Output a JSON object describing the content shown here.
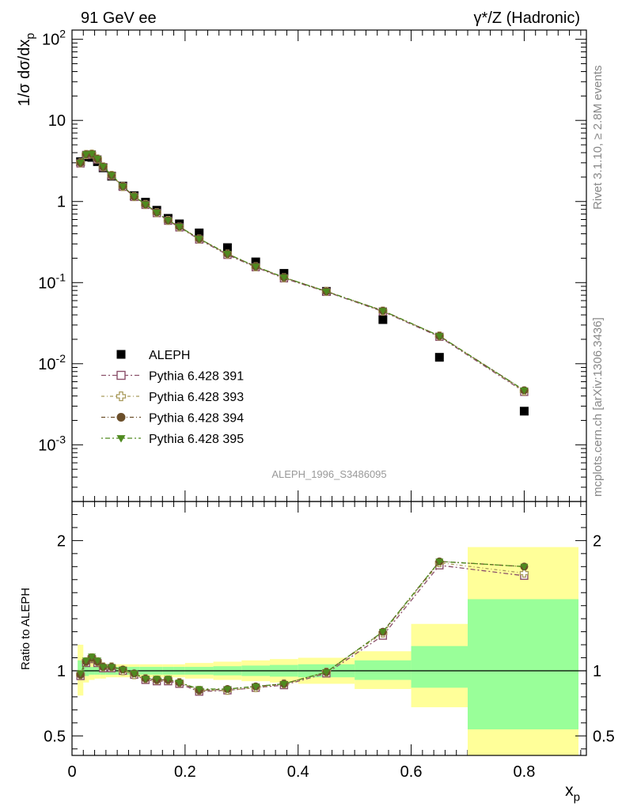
{
  "header": {
    "left": "91 GeV ee",
    "right": "γ*/Z (Hadronic)"
  },
  "side_labels": {
    "rivet": "Rivet 3.1.10, ≥ 2.8M events",
    "mcplots": "mcplots.cern.ch [arXiv:1306.3436]"
  },
  "analysis_id": "ALEPH_1996_S3486095",
  "colors": {
    "data": "#000000",
    "p391": "#8a4f6a",
    "p393": "#a89a5a",
    "p394": "#6b4f2a",
    "p395": "#4f8a1f",
    "band_inner": "#99ff99",
    "band_outer": "#ffff99"
  },
  "chart_data": [
    {
      "type": "scatter",
      "panel": "main",
      "xlabel": "",
      "ylabel": "1/σ dσ/dx_p",
      "log_y": true,
      "xlim": [
        0,
        0.91
      ],
      "ylim": [
        0.0002,
        130
      ],
      "y_ticks": [
        "10^{-3}",
        "10^{-2}",
        "10^{-1}",
        "1",
        "10",
        "10^{2}"
      ],
      "legend_position": "lower-left",
      "x": [
        0.015,
        0.025,
        0.035,
        0.045,
        0.055,
        0.07,
        0.09,
        0.11,
        0.13,
        0.15,
        0.17,
        0.19,
        0.225,
        0.275,
        0.325,
        0.375,
        0.45,
        0.55,
        0.65,
        0.8
      ],
      "series": [
        {
          "name": "ALEPH",
          "key": "data",
          "values": [
            3.1,
            3.55,
            3.5,
            3.1,
            2.6,
            2.05,
            1.55,
            1.18,
            0.98,
            0.78,
            0.62,
            0.53,
            0.41,
            0.27,
            0.18,
            0.13,
            0.078,
            0.035,
            0.012,
            0.0026
          ]
        },
        {
          "name": "Pythia 6.428 391",
          "key": "p391",
          "values": [
            2.95,
            3.75,
            3.8,
            3.3,
            2.65,
            2.08,
            1.52,
            1.14,
            0.91,
            0.72,
            0.58,
            0.48,
            0.34,
            0.22,
            0.155,
            0.113,
            0.077,
            0.044,
            0.0215,
            0.0045
          ]
        },
        {
          "name": "Pythia 6.428 393",
          "key": "p393",
          "values": [
            3.0,
            3.8,
            3.85,
            3.35,
            2.68,
            2.1,
            1.53,
            1.15,
            0.92,
            0.73,
            0.585,
            0.485,
            0.345,
            0.225,
            0.157,
            0.115,
            0.078,
            0.0445,
            0.022,
            0.0046
          ]
        },
        {
          "name": "Pythia 6.428 394",
          "key": "p394",
          "values": [
            3.0,
            3.82,
            3.85,
            3.35,
            2.68,
            2.1,
            1.54,
            1.15,
            0.92,
            0.735,
            0.585,
            0.49,
            0.347,
            0.226,
            0.158,
            0.116,
            0.078,
            0.045,
            0.022,
            0.0047
          ]
        },
        {
          "name": "Pythia 6.428 395",
          "key": "p395",
          "values": [
            3.02,
            3.85,
            3.9,
            3.38,
            2.7,
            2.12,
            1.54,
            1.16,
            0.925,
            0.735,
            0.59,
            0.49,
            0.348,
            0.227,
            0.158,
            0.116,
            0.078,
            0.045,
            0.022,
            0.0047
          ]
        }
      ]
    },
    {
      "type": "scatter",
      "panel": "ratio",
      "xlabel": "x_p",
      "ylabel": "Ratio to ALEPH",
      "xlim": [
        0,
        0.91
      ],
      "ylim": [
        0.35,
        2.3
      ],
      "x_ticks": [
        "0",
        "0.2",
        "0.4",
        "0.6",
        "0.8"
      ],
      "y_ticks": [
        "0.5",
        "1",
        "2"
      ],
      "x": [
        0.015,
        0.025,
        0.035,
        0.045,
        0.055,
        0.07,
        0.09,
        0.11,
        0.13,
        0.15,
        0.17,
        0.19,
        0.225,
        0.275,
        0.325,
        0.375,
        0.45,
        0.55,
        0.65,
        0.8
      ],
      "bins": [
        {
          "x": [
            0.01,
            0.02
          ],
          "inner": [
            0.93,
            1.08
          ],
          "outer": [
            0.81,
            1.2
          ]
        },
        {
          "x": [
            0.02,
            0.03
          ],
          "inner": [
            0.96,
            1.04
          ],
          "outer": [
            0.91,
            1.09
          ]
        },
        {
          "x": [
            0.03,
            0.04
          ],
          "inner": [
            0.97,
            1.03
          ],
          "outer": [
            0.93,
            1.07
          ]
        },
        {
          "x": [
            0.04,
            0.05
          ],
          "inner": [
            0.97,
            1.03
          ],
          "outer": [
            0.94,
            1.06
          ]
        },
        {
          "x": [
            0.05,
            0.06
          ],
          "inner": [
            0.97,
            1.03
          ],
          "outer": [
            0.94,
            1.06
          ]
        },
        {
          "x": [
            0.06,
            0.08
          ],
          "inner": [
            0.97,
            1.03
          ],
          "outer": [
            0.95,
            1.05
          ]
        },
        {
          "x": [
            0.08,
            0.1
          ],
          "inner": [
            0.97,
            1.03
          ],
          "outer": [
            0.95,
            1.05
          ]
        },
        {
          "x": [
            0.1,
            0.12
          ],
          "inner": [
            0.97,
            1.03
          ],
          "outer": [
            0.95,
            1.05
          ]
        },
        {
          "x": [
            0.12,
            0.14
          ],
          "inner": [
            0.97,
            1.03
          ],
          "outer": [
            0.95,
            1.05
          ]
        },
        {
          "x": [
            0.14,
            0.16
          ],
          "inner": [
            0.97,
            1.03
          ],
          "outer": [
            0.95,
            1.05
          ]
        },
        {
          "x": [
            0.16,
            0.18
          ],
          "inner": [
            0.97,
            1.03
          ],
          "outer": [
            0.95,
            1.05
          ]
        },
        {
          "x": [
            0.18,
            0.2
          ],
          "inner": [
            0.97,
            1.03
          ],
          "outer": [
            0.95,
            1.05
          ]
        },
        {
          "x": [
            0.2,
            0.25
          ],
          "inner": [
            0.97,
            1.03
          ],
          "outer": [
            0.94,
            1.06
          ]
        },
        {
          "x": [
            0.25,
            0.3
          ],
          "inner": [
            0.965,
            1.035
          ],
          "outer": [
            0.93,
            1.07
          ]
        },
        {
          "x": [
            0.3,
            0.35
          ],
          "inner": [
            0.96,
            1.04
          ],
          "outer": [
            0.92,
            1.08
          ]
        },
        {
          "x": [
            0.35,
            0.4
          ],
          "inner": [
            0.955,
            1.045
          ],
          "outer": [
            0.91,
            1.09
          ]
        },
        {
          "x": [
            0.4,
            0.5
          ],
          "inner": [
            0.95,
            1.05
          ],
          "outer": [
            0.9,
            1.1
          ]
        },
        {
          "x": [
            0.5,
            0.6
          ],
          "inner": [
            0.93,
            1.08
          ],
          "outer": [
            0.86,
            1.15
          ]
        },
        {
          "x": [
            0.6,
            0.7
          ],
          "inner": [
            0.87,
            1.19
          ],
          "outer": [
            0.72,
            1.36
          ]
        },
        {
          "x": [
            0.7,
            0.9
          ],
          "inner": [
            0.55,
            1.55
          ],
          "outer": [
            0.3,
            1.95
          ]
        }
      ],
      "series": [
        {
          "name": "Pythia 6.428 391",
          "key": "p391",
          "values": [
            0.96,
            1.06,
            1.09,
            1.06,
            1.02,
            1.02,
            1.0,
            0.97,
            0.93,
            0.92,
            0.92,
            0.9,
            0.84,
            0.85,
            0.87,
            0.89,
            0.98,
            1.27,
            1.81,
            1.73
          ]
        },
        {
          "name": "Pythia 6.428 393",
          "key": "p393",
          "values": [
            0.97,
            1.07,
            1.1,
            1.07,
            1.03,
            1.03,
            1.0,
            0.97,
            0.94,
            0.93,
            0.93,
            0.91,
            0.85,
            0.85,
            0.87,
            0.9,
            0.99,
            1.29,
            1.83,
            1.75
          ]
        },
        {
          "name": "Pythia 6.428 394",
          "key": "p394",
          "values": [
            0.97,
            1.07,
            1.1,
            1.07,
            1.03,
            1.03,
            1.01,
            0.98,
            0.94,
            0.93,
            0.93,
            0.91,
            0.85,
            0.86,
            0.88,
            0.9,
            0.99,
            1.3,
            1.84,
            1.8
          ]
        },
        {
          "name": "Pythia 6.428 395",
          "key": "p395",
          "values": [
            0.98,
            1.08,
            1.11,
            1.08,
            1.03,
            1.03,
            1.01,
            0.98,
            0.94,
            0.94,
            0.94,
            0.91,
            0.86,
            0.86,
            0.88,
            0.9,
            0.99,
            1.3,
            1.84,
            1.8
          ]
        }
      ]
    }
  ]
}
